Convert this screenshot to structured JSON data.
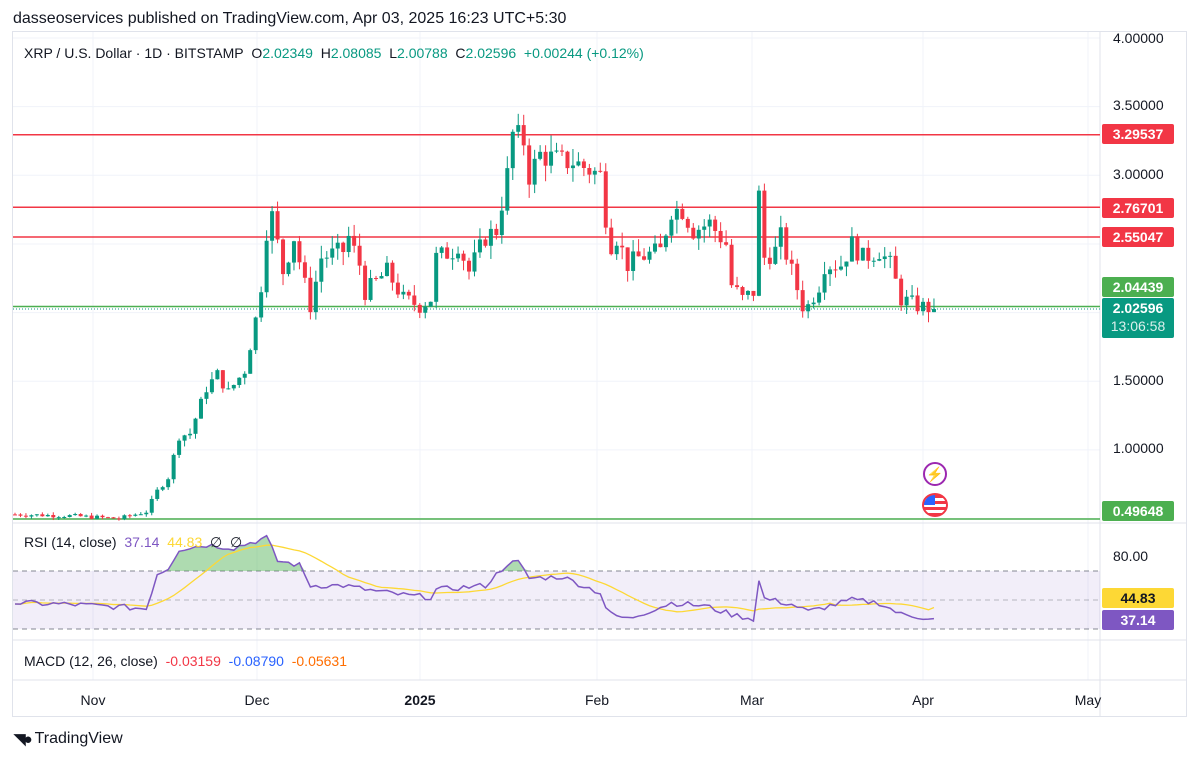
{
  "header": {
    "published": "dasseoservices published on TradingView.com, Apr 03, 2025 16:23 UTC+5:30"
  },
  "legend": {
    "symbol": "XRP / U.S. Dollar · 1D · BITSTAMP",
    "o_label": "O",
    "o": "2.02349",
    "h_label": "H",
    "h": "2.08085",
    "l_label": "L",
    "l": "2.00788",
    "c_label": "C",
    "c": "2.02596",
    "change": "+0.00244 (+0.12%)"
  },
  "price_axis": [
    "4.00000",
    "3.50000",
    "3.00000",
    "1.50000",
    "1.00000"
  ],
  "levels": [
    {
      "value": 3.29537,
      "label": "3.29537",
      "color": "#f23645"
    },
    {
      "value": 2.76701,
      "label": "2.76701",
      "color": "#f23645"
    },
    {
      "value": 2.55047,
      "label": "2.55047",
      "color": "#f23645"
    },
    {
      "value": 2.04439,
      "label": "2.04439",
      "color": "#4caf50"
    },
    {
      "value": 0.49648,
      "label": "0.49648",
      "color": "#4caf50"
    }
  ],
  "last_price": {
    "value": "2.02596",
    "countdown": "13:06:58",
    "color": "#089981"
  },
  "rsi": {
    "title": "RSI (14, close)",
    "value": "37.14",
    "ma": "44.83",
    "extra1": "∅",
    "extra2": "∅",
    "axis_label": "80.00",
    "value_tag": "37.14",
    "ma_tag": "44.83",
    "colors": {
      "rsi": "#7e57c2",
      "ma": "#fdd835"
    }
  },
  "macd": {
    "title": "MACD (12, 26, close)",
    "macd": "-0.03159",
    "signal": "-0.08790",
    "hist": "-0.05631"
  },
  "time_axis": [
    "Nov",
    "Dec",
    "2025",
    "Feb",
    "Mar",
    "Apr",
    "May"
  ],
  "footer": {
    "brand": "TradingView"
  },
  "colors": {
    "up": "#089981",
    "down": "#f23645"
  },
  "chart_data": {
    "type": "candlestick",
    "note": "approximate daily closes by day index from Oct 17, 2024",
    "closes": [
      [
        0,
        0.53
      ],
      [
        10,
        0.52
      ],
      [
        19,
        0.5
      ],
      [
        24,
        0.55
      ],
      [
        26,
        0.7
      ],
      [
        28,
        0.8
      ],
      [
        30,
        1.1
      ],
      [
        32,
        1.12
      ],
      [
        35,
        1.45
      ],
      [
        37,
        1.55
      ],
      [
        39,
        1.42
      ],
      [
        42,
        1.58
      ],
      [
        44,
        1.95
      ],
      [
        45,
        2.2
      ],
      [
        46,
        2.6
      ],
      [
        47,
        2.7
      ],
      [
        49,
        2.3
      ],
      [
        51,
        2.55
      ],
      [
        53,
        2.2
      ],
      [
        54,
        2.05
      ],
      [
        56,
        2.4
      ],
      [
        60,
        2.45
      ],
      [
        61,
        2.55
      ],
      [
        63,
        2.35
      ],
      [
        64,
        2.15
      ],
      [
        68,
        2.3
      ],
      [
        71,
        2.1
      ],
      [
        74,
        2.05
      ],
      [
        76,
        2.1
      ],
      [
        77,
        2.4
      ],
      [
        80,
        2.45
      ],
      [
        81,
        2.5
      ],
      [
        83,
        2.3
      ],
      [
        86,
        2.55
      ],
      [
        88,
        2.6
      ],
      [
        90,
        3.0
      ],
      [
        91,
        3.3
      ],
      [
        93,
        3.25
      ],
      [
        94,
        3.0
      ],
      [
        96,
        3.15
      ],
      [
        100,
        3.1
      ],
      [
        102,
        3.1
      ],
      [
        107,
        3.0
      ],
      [
        108,
        2.7
      ],
      [
        109,
        2.5
      ],
      [
        110,
        2.55
      ],
      [
        112,
        2.35
      ],
      [
        114,
        2.4
      ],
      [
        118,
        2.45
      ],
      [
        120,
        2.75
      ],
      [
        122,
        2.75
      ],
      [
        124,
        2.6
      ],
      [
        127,
        2.65
      ],
      [
        130,
        2.5
      ],
      [
        131,
        2.2
      ],
      [
        133,
        2.1
      ],
      [
        135,
        2.15
      ],
      [
        136,
        2.85
      ],
      [
        137,
        2.4
      ],
      [
        139,
        2.45
      ],
      [
        140,
        2.55
      ],
      [
        142,
        2.3
      ],
      [
        144,
        2.05
      ],
      [
        145,
        2.05
      ],
      [
        147,
        2.2
      ],
      [
        148,
        2.35
      ],
      [
        151,
        2.35
      ],
      [
        153,
        2.5
      ],
      [
        155,
        2.4
      ],
      [
        158,
        2.45
      ],
      [
        160,
        2.35
      ],
      [
        162,
        2.1
      ],
      [
        165,
        2.05
      ],
      [
        168,
        2.026
      ]
    ],
    "rsi": [
      [
        0,
        48
      ],
      [
        10,
        47
      ],
      [
        20,
        45
      ],
      [
        24,
        44
      ],
      [
        26,
        68
      ],
      [
        28,
        72
      ],
      [
        30,
        85
      ],
      [
        35,
        88
      ],
      [
        40,
        86
      ],
      [
        46,
        93
      ],
      [
        48,
        77
      ],
      [
        52,
        74
      ],
      [
        54,
        60
      ],
      [
        60,
        60
      ],
      [
        66,
        56
      ],
      [
        72,
        53
      ],
      [
        76,
        52
      ],
      [
        77,
        57
      ],
      [
        86,
        60
      ],
      [
        90,
        75
      ],
      [
        92,
        76
      ],
      [
        94,
        65
      ],
      [
        100,
        66
      ],
      [
        107,
        55
      ],
      [
        108,
        45
      ],
      [
        109,
        40
      ],
      [
        112,
        37
      ],
      [
        120,
        48
      ],
      [
        126,
        46
      ],
      [
        131,
        40
      ],
      [
        135,
        37
      ],
      [
        136,
        63
      ],
      [
        137,
        51
      ],
      [
        142,
        47
      ],
      [
        145,
        42
      ],
      [
        153,
        50
      ],
      [
        158,
        48
      ],
      [
        162,
        40
      ],
      [
        168,
        37.14
      ]
    ],
    "rsi_ma_last": 44.83,
    "ylim": [
      0.45,
      4.0
    ],
    "rsi_band": [
      30,
      70
    ]
  }
}
